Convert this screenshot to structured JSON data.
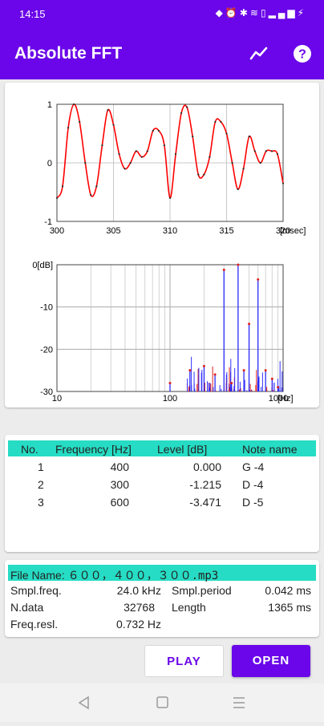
{
  "status": {
    "time": "14:15",
    "icons": [
      "location-icon",
      "alarm-icon",
      "bluetooth-icon",
      "wifi-icon",
      "battery-saver-icon",
      "signal-icon",
      "battery-icon"
    ]
  },
  "app": {
    "title": "Absolute FFT",
    "icons": [
      "chart-icon",
      "help-icon"
    ]
  },
  "waveform": {
    "x_range_msec": [
      300,
      320
    ],
    "y_range": [
      -1,
      1
    ],
    "x_ticks": [
      "300",
      "305",
      "310",
      "315",
      "320"
    ],
    "x_unit": "[msec]",
    "y_ticks": [
      "1",
      "0",
      "-1"
    ],
    "colors": {
      "line": "#ff0000",
      "dots": "#2a2a2a",
      "frame": "#444444",
      "grid": "#c8c8c8"
    }
  },
  "chart_data": [
    {
      "type": "line",
      "x": [
        300.0,
        300.5,
        301.0,
        301.5,
        302.0,
        302.5,
        303.0,
        303.5,
        304.0,
        304.5,
        305.0,
        305.5,
        306.0,
        306.5,
        307.0,
        307.5,
        308.0,
        308.5,
        309.0,
        309.5,
        310.0,
        310.5,
        311.0,
        311.5,
        312.0,
        312.5,
        313.0,
        313.5,
        314.0,
        314.5,
        315.0,
        315.5,
        316.0,
        316.5,
        317.0,
        317.5,
        318.0,
        318.5,
        319.0,
        319.5,
        320.0
      ],
      "y": [
        -0.6,
        -0.4,
        0.6,
        1.0,
        0.7,
        0.0,
        -0.55,
        -0.4,
        0.3,
        0.9,
        0.65,
        0.15,
        -0.1,
        0.0,
        0.2,
        0.1,
        0.2,
        0.55,
        0.55,
        0.3,
        -0.6,
        0.15,
        0.85,
        0.95,
        0.45,
        -0.2,
        -0.2,
        0.1,
        0.7,
        0.7,
        0.5,
        0.0,
        -0.45,
        -0.1,
        0.45,
        0.2,
        0.0,
        0.2,
        0.2,
        0.15,
        -0.35
      ],
      "xlim": [
        300,
        320
      ],
      "ylim": [
        -1,
        1
      ],
      "xlabel": "[msec]",
      "grid": true
    },
    {
      "type": "scatter",
      "xscale": "log",
      "xlim": [
        10,
        1000
      ],
      "ylim": [
        -30,
        0
      ],
      "x_ticks": [
        "10",
        "100",
        "1000"
      ],
      "x_unit": "[Hz]",
      "y_ticks": [
        "0[dB]",
        "-10",
        "-20",
        "-30"
      ],
      "grid": true,
      "series": [
        {
          "name": "",
          "color": "#1a1aff",
          "x": [
            100,
            150,
            200,
            250,
            300,
            350,
            400,
            450,
            500,
            600,
            700,
            800,
            900
          ],
          "y": [
            -28,
            -25,
            -24,
            -26,
            -1.2,
            -28,
            0.0,
            -25,
            -14,
            -3.5,
            -25,
            -27,
            -29
          ]
        }
      ]
    }
  ],
  "notes_table": {
    "headers": {
      "no": "No.",
      "freq": "Frequency [Hz]",
      "level": "Level [dB]",
      "note": "Note name"
    },
    "rows": [
      {
        "no": "1",
        "freq": "400",
        "level": "0.000",
        "note": "G -4"
      },
      {
        "no": "2",
        "freq": "300",
        "level": "-1.215",
        "note": "D -4"
      },
      {
        "no": "3",
        "freq": "600",
        "level": "-3.471",
        "note": "D -5"
      }
    ]
  },
  "file": {
    "label": "File Name: ",
    "name": "６００，４００，３００.mp3",
    "smpl_freq_label": "Smpl.freq.",
    "smpl_freq": "24.0 kHz",
    "smpl_period_label": "Smpl.period",
    "smpl_period": "0.042 ms",
    "ndata_label": "N.data",
    "ndata": "32768",
    "length_label": "Length",
    "length": "1365 ms",
    "freq_resl_label": "Freq.resl.",
    "freq_resl": "0.732 Hz"
  },
  "buttons": {
    "play": "PLAY",
    "open": "OPEN"
  },
  "nav": {
    "icons": [
      "back-icon",
      "home-icon",
      "menu-icon"
    ]
  },
  "colors": {
    "primary": "#6a06e9",
    "accent": "#26dcc4"
  }
}
